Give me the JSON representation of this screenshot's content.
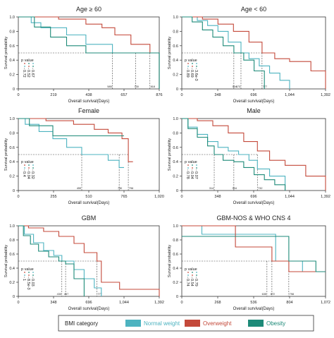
{
  "legend": {
    "title": "BMI category",
    "entries": [
      {
        "name": "Normal weight",
        "color": "#4db3c0"
      },
      {
        "name": "Overweight",
        "color": "#c4493a"
      },
      {
        "name": "Obesity",
        "color": "#1d8a78"
      }
    ]
  },
  "chart_data": [
    {
      "type": "line",
      "step": true,
      "title": "Age ≥ 60",
      "xlabel": "Overall survival(Days)",
      "ylabel": "Survival probability",
      "xlim": [
        0,
        876
      ],
      "ylim": [
        0,
        1
      ],
      "xticks": [
        0,
        219,
        438,
        657,
        876
      ],
      "xtick_labels": [
        "0",
        "219",
        "438",
        "657",
        "876"
      ],
      "yticks": [
        0,
        0.2,
        0.4,
        0.6,
        0.8,
        1.0
      ],
      "ytick_labels": [
        "0",
        "0.2",
        "0.4",
        "0.6",
        "0.8",
        "1.0"
      ],
      "pvalue_label": "p value",
      "pvalues": [
        "0.72",
        "0.52",
        "0.67"
      ],
      "medians": [
        {
          "x": 585,
          "label": "585"
        },
        {
          "x": 730,
          "label": "730"
        },
        {
          "x": 818,
          "label": "818"
        }
      ],
      "series": [
        {
          "name": "Normal weight",
          "color": "#4db3c0",
          "x": [
            0,
            80,
            140,
            300,
            420,
            585,
            640,
            730,
            876
          ],
          "y": [
            1.0,
            0.92,
            0.85,
            0.75,
            0.62,
            0.5,
            0.5,
            0.5,
            0.0
          ]
        },
        {
          "name": "Overweight",
          "color": "#c4493a",
          "x": [
            0,
            250,
            420,
            520,
            600,
            700,
            818,
            876
          ],
          "y": [
            1.0,
            0.97,
            0.9,
            0.85,
            0.75,
            0.62,
            0.5,
            0.0
          ]
        },
        {
          "name": "Obesity",
          "color": "#1d8a78",
          "x": [
            0,
            100,
            200,
            300,
            420,
            500,
            570,
            876
          ],
          "y": [
            1.0,
            0.86,
            0.72,
            0.6,
            0.5,
            0.5,
            0.5,
            0.0
          ]
        }
      ]
    },
    {
      "type": "line",
      "step": true,
      "title": "Age < 60",
      "xlabel": "Overall survival(Days)",
      "ylabel": "Survival probability",
      "xlim": [
        0,
        1392
      ],
      "ylim": [
        0,
        1
      ],
      "xticks": [
        0,
        348,
        696,
        1044,
        1392
      ],
      "xtick_labels": [
        "0",
        "348",
        "696",
        "1,044",
        "1,392"
      ],
      "yticks": [
        0,
        0.2,
        0.4,
        0.6,
        0.8,
        1.0
      ],
      "ytick_labels": [
        "0",
        "0.2",
        "0.4",
        "0.6",
        "0.8",
        "1.0"
      ],
      "pvalue_label": "p value",
      "pvalues": [
        "0.89",
        "0.69",
        "3.6e-3"
      ],
      "medians": [
        {
          "x": 573,
          "label": "573"
        },
        {
          "x": 504,
          "label": "504"
        },
        {
          "x": 777,
          "label": "777"
        }
      ],
      "series": [
        {
          "name": "Normal weight",
          "color": "#4db3c0",
          "x": [
            0,
            150,
            250,
            350,
            450,
            573,
            650,
            750,
            850,
            950,
            1044
          ],
          "y": [
            1.0,
            0.95,
            0.88,
            0.8,
            0.65,
            0.5,
            0.42,
            0.32,
            0.22,
            0.12,
            0.0
          ]
        },
        {
          "name": "Overweight",
          "color": "#c4493a",
          "x": [
            0,
            200,
            350,
            500,
            650,
            777,
            900,
            1044,
            1250,
            1392
          ],
          "y": [
            1.0,
            0.97,
            0.9,
            0.8,
            0.65,
            0.5,
            0.42,
            0.38,
            0.25,
            0.0
          ]
        },
        {
          "name": "Obesity",
          "color": "#1d8a78",
          "x": [
            0,
            100,
            200,
            300,
            400,
            504,
            600,
            700,
            800
          ],
          "y": [
            1.0,
            0.93,
            0.82,
            0.72,
            0.6,
            0.5,
            0.4,
            0.25,
            0.0
          ]
        }
      ]
    },
    {
      "type": "line",
      "step": true,
      "title": "Female",
      "xlabel": "Overall survival(Days)",
      "ylabel": "Survival probability",
      "xlim": [
        0,
        1020
      ],
      "ylim": [
        0,
        1
      ],
      "xticks": [
        0,
        255,
        510,
        765,
        1020
      ],
      "xtick_labels": [
        "0",
        "255",
        "510",
        "765",
        "1,020"
      ],
      "yticks": [
        0,
        0.2,
        0.4,
        0.6,
        0.8,
        1.0
      ],
      "ytick_labels": [
        "0",
        "0.2",
        "0.4",
        "0.6",
        "0.8",
        "1.0"
      ],
      "pvalue_label": "p value",
      "pvalues": [
        "0.4",
        "0.04",
        "0.32"
      ],
      "medians": [
        {
          "x": 459,
          "label": "459"
        },
        {
          "x": 730,
          "label": "730"
        },
        {
          "x": 796,
          "label": "796"
        }
      ],
      "series": [
        {
          "name": "Normal weight",
          "color": "#4db3c0",
          "x": [
            0,
            50,
            150,
            250,
            350,
            459,
            550,
            650,
            730,
            765
          ],
          "y": [
            1.0,
            0.92,
            0.82,
            0.72,
            0.6,
            0.5,
            0.5,
            0.42,
            0.32,
            0.32
          ]
        },
        {
          "name": "Overweight",
          "color": "#c4493a",
          "x": [
            0,
            200,
            400,
            550,
            650,
            750,
            796,
            830
          ],
          "y": [
            1.0,
            0.97,
            0.92,
            0.85,
            0.8,
            0.72,
            0.4,
            0.4
          ]
        },
        {
          "name": "Obesity",
          "color": "#1d8a78",
          "x": [
            0,
            80,
            250,
            765
          ],
          "y": [
            1.0,
            0.9,
            0.76,
            0.76
          ]
        }
      ]
    },
    {
      "type": "line",
      "step": true,
      "title": "Male",
      "xlabel": "Overall survival(Days)",
      "ylabel": "Survival probability",
      "xlim": [
        0,
        1392
      ],
      "ylim": [
        0,
        1
      ],
      "xticks": [
        0,
        348,
        696,
        1044,
        1392
      ],
      "xtick_labels": [
        "0",
        "348",
        "696",
        "1,044",
        "1,392"
      ],
      "yticks": [
        0,
        0.2,
        0.4,
        0.6,
        0.8,
        1.0
      ],
      "ytick_labels": [
        "0",
        "0.2",
        "0.4",
        "0.6",
        "0.8",
        "1.0"
      ],
      "pvalue_label": "p value",
      "pvalues": [
        "0.78",
        "0.04",
        "0.07"
      ],
      "medians": [
        {
          "x": 314,
          "label": "314"
        },
        {
          "x": 504,
          "label": "504"
        },
        {
          "x": 732,
          "label": "732"
        }
      ],
      "series": [
        {
          "name": "Normal weight",
          "color": "#4db3c0",
          "x": [
            0,
            60,
            150,
            250,
            350,
            450,
            550,
            650,
            732,
            850,
            1000
          ],
          "y": [
            1.0,
            0.88,
            0.78,
            0.68,
            0.6,
            0.55,
            0.5,
            0.42,
            0.3,
            0.2,
            0.0
          ]
        },
        {
          "name": "Overweight",
          "color": "#c4493a",
          "x": [
            0,
            150,
            300,
            450,
            600,
            732,
            850,
            1000,
            1200,
            1392
          ],
          "y": [
            1.0,
            0.97,
            0.9,
            0.8,
            0.68,
            0.55,
            0.42,
            0.35,
            0.2,
            0.0
          ]
        },
        {
          "name": "Obesity",
          "color": "#1d8a78",
          "x": [
            0,
            60,
            150,
            250,
            314,
            400,
            504,
            600,
            700,
            800,
            900,
            1000
          ],
          "y": [
            1.0,
            0.86,
            0.74,
            0.62,
            0.5,
            0.42,
            0.4,
            0.32,
            0.22,
            0.15,
            0.08,
            0.0
          ]
        }
      ]
    },
    {
      "type": "line",
      "step": true,
      "title": "GBM",
      "xlabel": "Overall survival(Days)",
      "ylabel": "Survival probability",
      "xlim": [
        0,
        1392
      ],
      "ylim": [
        0,
        1
      ],
      "xticks": [
        0,
        348,
        696,
        1044,
        1392
      ],
      "xtick_labels": [
        "0",
        "348",
        "696",
        "1,044",
        "1,392"
      ],
      "yticks": [
        0,
        0.2,
        0.4,
        0.6,
        0.8,
        1.0
      ],
      "ytick_labels": [
        "0",
        "0.2",
        "0.4",
        "0.6",
        "0.8",
        "1.0"
      ],
      "pvalue_label": "p value",
      "pvalues": [
        "1",
        "8.5e-3",
        "0.03"
      ],
      "medians": [
        {
          "x": 430,
          "label": "430"
        },
        {
          "x": 467,
          "label": "467"
        },
        {
          "x": 777,
          "label": "777"
        }
      ],
      "series": [
        {
          "name": "Normal weight",
          "color": "#4db3c0",
          "x": [
            0,
            60,
            150,
            250,
            350,
            430,
            550,
            650,
            750,
            820
          ],
          "y": [
            1.0,
            0.88,
            0.76,
            0.65,
            0.58,
            0.5,
            0.38,
            0.25,
            0.12,
            0.0
          ]
        },
        {
          "name": "Overweight",
          "color": "#c4493a",
          "x": [
            0,
            100,
            250,
            400,
            550,
            650,
            777,
            820,
            1000,
            1392
          ],
          "y": [
            1.0,
            0.97,
            0.92,
            0.85,
            0.75,
            0.62,
            0.5,
            0.2,
            0.1,
            0.0
          ]
        },
        {
          "name": "Obesity",
          "color": "#1d8a78",
          "x": [
            0,
            50,
            120,
            200,
            300,
            400,
            467,
            550,
            650
          ],
          "y": [
            1.0,
            0.86,
            0.74,
            0.64,
            0.56,
            0.5,
            0.46,
            0.25,
            0.0
          ]
        }
      ]
    },
    {
      "type": "line",
      "step": true,
      "title": "GBM-NOS & WHO CNS 4",
      "xlabel": "Overall survival(Days)",
      "ylabel": "Survival probability",
      "xlim": [
        0,
        1072
      ],
      "ylim": [
        0,
        1
      ],
      "xticks": [
        0,
        268,
        536,
        804,
        1072
      ],
      "xtick_labels": [
        "0",
        "268",
        "536",
        "804",
        "1,072"
      ],
      "yticks": [
        0,
        0.2,
        0.4,
        0.6,
        0.8,
        1.0
      ],
      "ytick_labels": [
        "0",
        "0.2",
        "0.4",
        "0.6",
        "0.8",
        "1.0"
      ],
      "pvalue_label": "p value",
      "pvalues": [
        "0.74",
        "0.54",
        "0.79"
      ],
      "medians": [
        {
          "x": 635,
          "label": "635"
        },
        {
          "x": 672,
          "label": "672"
        },
        {
          "x": 798,
          "label": "798"
        }
      ],
      "series": [
        {
          "name": "Normal weight",
          "color": "#4db3c0",
          "x": [
            0,
            150,
            635,
            700,
            900,
            1072
          ],
          "y": [
            1.0,
            0.88,
            0.88,
            0.5,
            0.35,
            0.35
          ]
        },
        {
          "name": "Overweight",
          "color": "#c4493a",
          "x": [
            0,
            400,
            672,
            798,
            1000,
            1072
          ],
          "y": [
            1.0,
            0.7,
            0.5,
            0.35,
            0.35,
            0.35
          ]
        },
        {
          "name": "Obesity",
          "color": "#1d8a78",
          "x": [
            0,
            798,
            1000,
            1072
          ],
          "y": [
            0.85,
            0.5,
            0.35,
            0.35
          ]
        }
      ]
    }
  ]
}
